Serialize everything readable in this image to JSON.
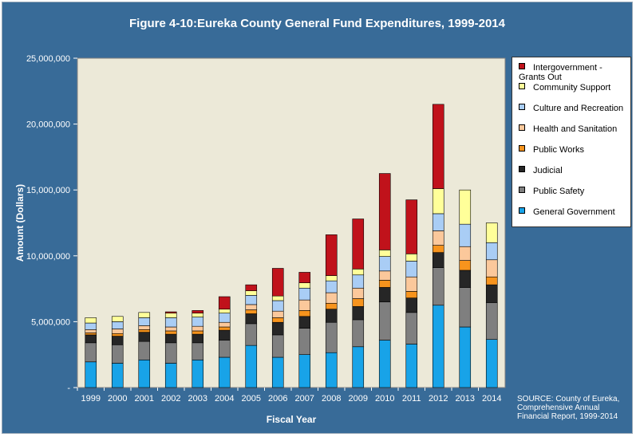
{
  "chart_data": {
    "type": "bar",
    "stacked": true,
    "title": "Figure 4-10:Eureka County General Fund Expenditures, 1999-2014",
    "xlabel": "Fiscal Year",
    "ylabel": "Amount (Dollars)",
    "ylim": [
      0,
      25000000
    ],
    "yticks": [
      "-",
      "5,000,000",
      "10,000,000",
      "15,000,000",
      "20,000,000",
      "25,000,000"
    ],
    "grid": false,
    "legend_position": "right",
    "categories": [
      "1999",
      "2000",
      "2001",
      "2002",
      "2003",
      "2004",
      "2005",
      "2006",
      "2007",
      "2008",
      "2009",
      "2010",
      "2011",
      "2012",
      "2013",
      "2014"
    ],
    "series": [
      {
        "name": "General Government",
        "color": "#18a3e8",
        "values": [
          1950000,
          1850000,
          2100000,
          1850000,
          2100000,
          2300000,
          3200000,
          2300000,
          2500000,
          2650000,
          3100000,
          3600000,
          3300000,
          6250000,
          4600000,
          3650000
        ]
      },
      {
        "name": "Public Safety",
        "color": "#7f7f7f",
        "values": [
          1450000,
          1400000,
          1400000,
          1550000,
          1300000,
          1300000,
          1650000,
          1700000,
          2000000,
          2300000,
          2050000,
          2900000,
          2400000,
          2850000,
          3000000,
          2800000
        ]
      },
      {
        "name": "Judicial",
        "color": "#262626",
        "values": [
          600000,
          650000,
          700000,
          650000,
          650000,
          750000,
          750000,
          950000,
          900000,
          1000000,
          1000000,
          1100000,
          1100000,
          1150000,
          1300000,
          1350000
        ]
      },
      {
        "name": "Public Works",
        "color": "#f7941d",
        "values": [
          150000,
          200000,
          200000,
          250000,
          250000,
          250000,
          300000,
          350000,
          450000,
          450000,
          600000,
          550000,
          500000,
          550000,
          750000,
          600000
        ]
      },
      {
        "name": "Health and Sanitation",
        "color": "#fbc89b",
        "values": [
          250000,
          350000,
          300000,
          300000,
          350000,
          350000,
          400000,
          500000,
          800000,
          800000,
          800000,
          700000,
          1100000,
          1100000,
          1050000,
          1300000
        ]
      },
      {
        "name": "Culture and Recreation",
        "color": "#a9cdf5",
        "values": [
          500000,
          550000,
          600000,
          700000,
          700000,
          700000,
          700000,
          800000,
          900000,
          900000,
          1000000,
          1100000,
          1200000,
          1300000,
          1700000,
          1300000
        ]
      },
      {
        "name": "Community Support",
        "color": "#ffff99",
        "values": [
          400000,
          400000,
          400000,
          350000,
          300000,
          300000,
          350000,
          350000,
          400000,
          400000,
          450000,
          500000,
          550000,
          1900000,
          2600000,
          1500000
        ]
      },
      {
        "name": "Intergovernment - Grants Out",
        "color": "#c0121b",
        "values": [
          0,
          0,
          0,
          100000,
          200000,
          950000,
          450000,
          2100000,
          800000,
          3100000,
          3800000,
          5800000,
          4100000,
          6400000,
          0,
          0
        ]
      }
    ],
    "legend_order": [
      "Intergovernment - Grants Out",
      "Community Support",
      "Culture and Recreation",
      "Health and Sanitation",
      "Public Works",
      "Judicial",
      "Public Safety",
      "General Government"
    ]
  },
  "source_note": "SOURCE: County of Eureka, Comprehensive Annual Financial Report, 1999-2014"
}
